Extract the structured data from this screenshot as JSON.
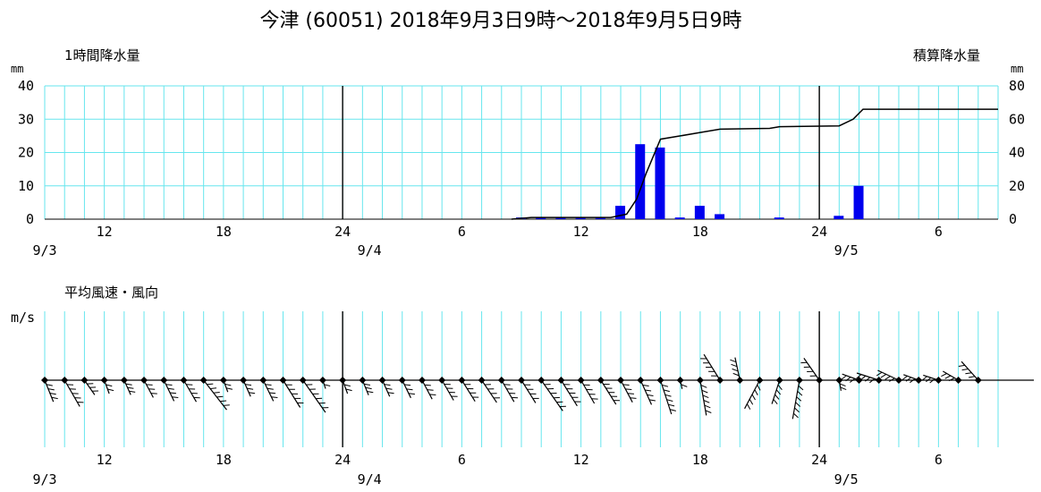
{
  "title": "今津 (60051)   2018年9月3日9時～2018年9月5日9時",
  "chart_data": [
    {
      "type": "bar",
      "name": "rain",
      "left_label": "1時間降水量",
      "right_label": "積算降水量",
      "left_unit": "mm",
      "right_unit": "mm",
      "ylim": [
        0,
        40
      ],
      "y2lim": [
        0,
        80
      ],
      "yticks": [
        "0",
        "10",
        "20",
        "30",
        "40"
      ],
      "y2ticks": [
        "0",
        "20",
        "40",
        "60",
        "80"
      ],
      "xlim": [
        9,
        57
      ],
      "hour_ticks": [
        {
          "t": 12,
          "label": "12"
        },
        {
          "t": 18,
          "label": "18"
        },
        {
          "t": 24,
          "label": "24"
        },
        {
          "t": 30,
          "label": "6"
        },
        {
          "t": 36,
          "label": "12"
        },
        {
          "t": 42,
          "label": "18"
        },
        {
          "t": 48,
          "label": "24"
        },
        {
          "t": 54,
          "label": "6"
        }
      ],
      "date_ticks": [
        {
          "t": 9,
          "label": "9/3"
        },
        {
          "t": 24,
          "label": "9/4"
        },
        {
          "t": 48,
          "label": "9/5"
        }
      ],
      "day_lines": [
        24,
        48
      ],
      "hourly": [
        {
          "t": 33,
          "v": 0.5
        },
        {
          "t": 34,
          "v": 0.5
        },
        {
          "t": 35,
          "v": 0.5
        },
        {
          "t": 36,
          "v": 0.5
        },
        {
          "t": 37,
          "v": 0.5
        },
        {
          "t": 38,
          "v": 4
        },
        {
          "t": 39,
          "v": 22.5
        },
        {
          "t": 40,
          "v": 21.5
        },
        {
          "t": 41,
          "v": 0.5
        },
        {
          "t": 42,
          "v": 4
        },
        {
          "t": 43,
          "v": 1.5
        },
        {
          "t": 46,
          "v": 0.5
        },
        {
          "t": 49,
          "v": 1
        },
        {
          "t": 50,
          "v": 10
        }
      ],
      "cumulative": [
        [
          32.5,
          0
        ],
        [
          33.5,
          1
        ],
        [
          37.5,
          1
        ],
        [
          38.3,
          3
        ],
        [
          38.8,
          12
        ],
        [
          39.3,
          28
        ],
        [
          40.0,
          48
        ],
        [
          41.0,
          50
        ],
        [
          42.0,
          52
        ],
        [
          43.0,
          54
        ],
        [
          45.5,
          54.5
        ],
        [
          46.0,
          55.5
        ],
        [
          49.0,
          56
        ],
        [
          49.7,
          60
        ],
        [
          50.2,
          66
        ],
        [
          57,
          66
        ]
      ]
    },
    {
      "type": "barbs",
      "name": "wind",
      "label": "平均風速・風向",
      "unit": "m/s",
      "xlim": [
        9,
        57
      ],
      "hour_ticks": [
        {
          "t": 12,
          "label": "12"
        },
        {
          "t": 18,
          "label": "18"
        },
        {
          "t": 24,
          "label": "24"
        },
        {
          "t": 30,
          "label": "6"
        },
        {
          "t": 36,
          "label": "12"
        },
        {
          "t": 42,
          "label": "18"
        },
        {
          "t": 48,
          "label": "24"
        },
        {
          "t": 54,
          "label": "6"
        }
      ],
      "date_ticks": [
        {
          "t": 9,
          "label": "9/3"
        },
        {
          "t": 24,
          "label": "9/4"
        },
        {
          "t": 48,
          "label": "9/5"
        }
      ],
      "day_lines": [
        24,
        48
      ],
      "observations": [
        {
          "t": 9,
          "len": 26,
          "dir": 68
        },
        {
          "t": 10,
          "len": 34,
          "dir": 60
        },
        {
          "t": 11,
          "len": 20,
          "dir": 55
        },
        {
          "t": 12,
          "len": 16,
          "dir": 70
        },
        {
          "t": 13,
          "len": 18,
          "dir": 66
        },
        {
          "t": 14,
          "len": 22,
          "dir": 62
        },
        {
          "t": 15,
          "len": 26,
          "dir": 64
        },
        {
          "t": 16,
          "len": 28,
          "dir": 60
        },
        {
          "t": 17,
          "len": 42,
          "dir": 52
        },
        {
          "t": 18,
          "len": 14,
          "dir": 70
        },
        {
          "t": 19,
          "len": 20,
          "dir": 66
        },
        {
          "t": 20,
          "len": 26,
          "dir": 64
        },
        {
          "t": 21,
          "len": 36,
          "dir": 58
        },
        {
          "t": 22,
          "len": 44,
          "dir": 55
        },
        {
          "t": 23,
          "len": 10,
          "dir": 72
        },
        {
          "t": 24,
          "len": 16,
          "dir": 70
        },
        {
          "t": 25,
          "len": 18,
          "dir": 68
        },
        {
          "t": 26,
          "len": 20,
          "dir": 66
        },
        {
          "t": 27,
          "len": 22,
          "dir": 64
        },
        {
          "t": 28,
          "len": 24,
          "dir": 62
        },
        {
          "t": 29,
          "len": 26,
          "dir": 60
        },
        {
          "t": 30,
          "len": 28,
          "dir": 58
        },
        {
          "t": 31,
          "len": 30,
          "dir": 56
        },
        {
          "t": 32,
          "len": 28,
          "dir": 60
        },
        {
          "t": 33,
          "len": 30,
          "dir": 58
        },
        {
          "t": 34,
          "len": 42,
          "dir": 55
        },
        {
          "t": 35,
          "len": 34,
          "dir": 58
        },
        {
          "t": 36,
          "len": 30,
          "dir": 60
        },
        {
          "t": 37,
          "len": 32,
          "dir": 58
        },
        {
          "t": 38,
          "len": 28,
          "dir": 62
        },
        {
          "t": 39,
          "len": 30,
          "dir": 66
        },
        {
          "t": 40,
          "len": 40,
          "dir": 72
        },
        {
          "t": 41,
          "len": 10,
          "dir": 78
        },
        {
          "t": 42,
          "len": 40,
          "dir": 80
        },
        {
          "t": 43,
          "len": 34,
          "dir": 238
        },
        {
          "t": 44,
          "len": 26,
          "dir": 258
        },
        {
          "t": 45,
          "len": 36,
          "dir": 118
        },
        {
          "t": 46,
          "len": 28,
          "dir": 108
        },
        {
          "t": 47,
          "len": 44,
          "dir": 100
        },
        {
          "t": 48,
          "len": 30,
          "dir": 235
        },
        {
          "t": 49,
          "len": 12,
          "dir": 80
        },
        {
          "t": 50,
          "len": 20,
          "dir": 200
        },
        {
          "t": 51,
          "len": 26,
          "dir": 198
        },
        {
          "t": 52,
          "len": 26,
          "dir": 205
        },
        {
          "t": 53,
          "len": 18,
          "dir": 200
        },
        {
          "t": 54,
          "len": 18,
          "dir": 198
        },
        {
          "t": 55,
          "len": 20,
          "dir": 210
        },
        {
          "t": 56,
          "len": 28,
          "dir": 228
        }
      ]
    }
  ]
}
